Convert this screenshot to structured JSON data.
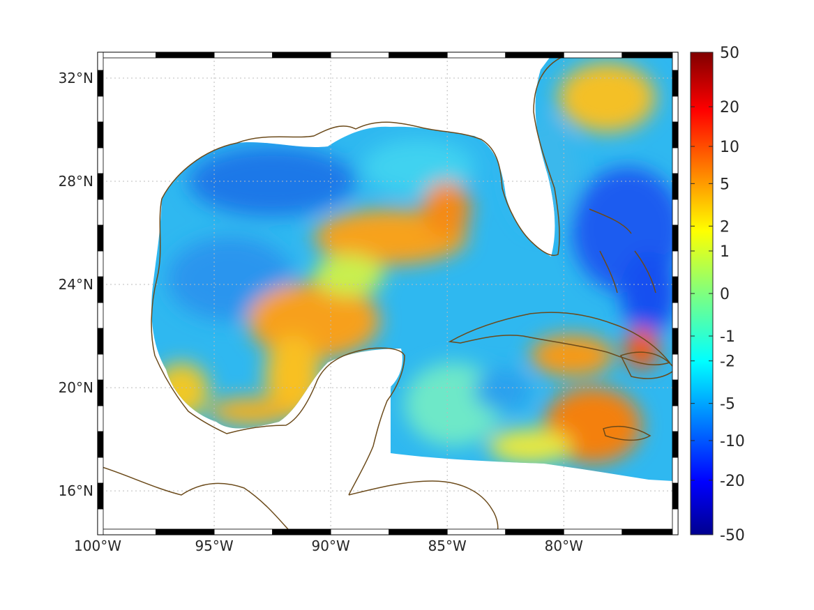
{
  "map": {
    "lon_range": [
      -100,
      -75.1
    ],
    "lat_range": [
      14.3,
      33
    ],
    "lon_ticks": [
      {
        "value": -100,
        "label": "100°W"
      },
      {
        "value": -95,
        "label": "95°W"
      },
      {
        "value": -90,
        "label": "90°W"
      },
      {
        "value": -85,
        "label": "85°W"
      },
      {
        "value": -80,
        "label": "80°W"
      }
    ],
    "lat_ticks": [
      {
        "value": 16,
        "label": "16°N"
      },
      {
        "value": 20,
        "label": "20°N"
      },
      {
        "value": 24,
        "label": "24°N"
      },
      {
        "value": 28,
        "label": "28°N"
      },
      {
        "value": 32,
        "label": "32°N"
      }
    ],
    "grid": true,
    "coastline_color": "#6b4a1a",
    "land_color": "#ffffff",
    "colormap": "jet"
  },
  "colorbar": {
    "scale": "symmetric-log",
    "ticks": [
      "50",
      "20",
      "10",
      "5",
      "2",
      "1",
      "0",
      "-1",
      "-2",
      "-5",
      "-10",
      "-20",
      "-50"
    ],
    "range": [
      -50,
      50
    ]
  }
}
